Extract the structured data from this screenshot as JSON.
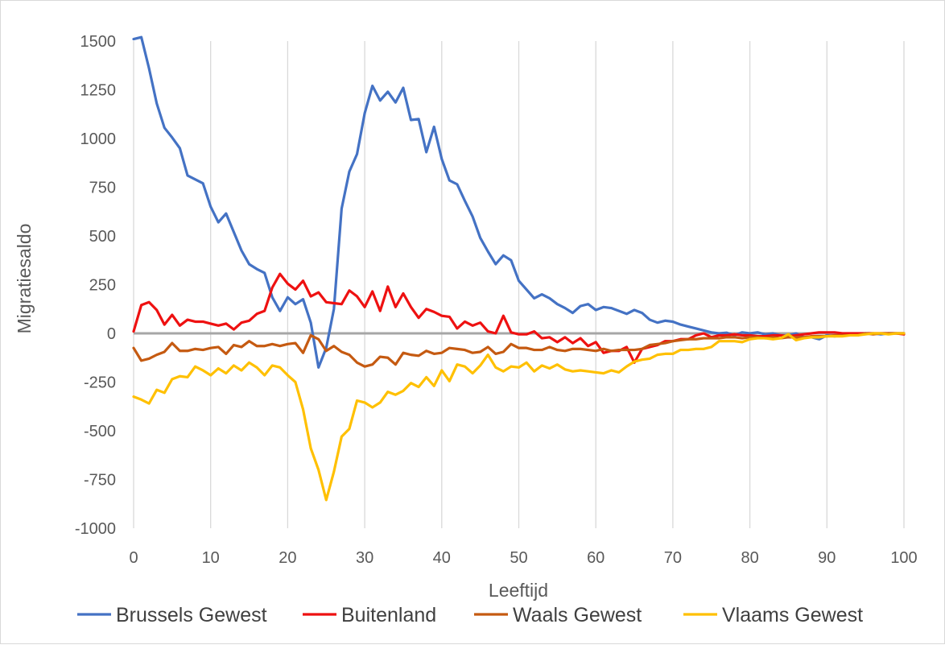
{
  "chart_data": {
    "type": "line",
    "title": "",
    "xlabel": "Leeftijd",
    "ylabel": "Migratiesaldo",
    "xlim": [
      0,
      100
    ],
    "ylim": [
      -1000,
      1500
    ],
    "xticks": [
      0,
      10,
      20,
      30,
      40,
      50,
      60,
      70,
      80,
      90,
      100
    ],
    "yticks": [
      -1000,
      -750,
      -500,
      -250,
      0,
      250,
      500,
      750,
      1000,
      1250,
      1500
    ],
    "grid": "vertical",
    "legend_position": "bottom",
    "zero_line_color": "#a6a6a6",
    "x": [
      0,
      1,
      2,
      3,
      4,
      5,
      6,
      7,
      8,
      9,
      10,
      11,
      12,
      13,
      14,
      15,
      16,
      17,
      18,
      19,
      20,
      21,
      22,
      23,
      24,
      25,
      26,
      27,
      28,
      29,
      30,
      31,
      32,
      33,
      34,
      35,
      36,
      37,
      38,
      39,
      40,
      41,
      42,
      43,
      44,
      45,
      46,
      47,
      48,
      49,
      50,
      51,
      52,
      53,
      54,
      55,
      56,
      57,
      58,
      59,
      60,
      61,
      62,
      63,
      64,
      65,
      66,
      67,
      68,
      69,
      70,
      71,
      72,
      73,
      74,
      75,
      76,
      77,
      78,
      79,
      80,
      81,
      82,
      83,
      84,
      85,
      86,
      87,
      88,
      89,
      90,
      91,
      92,
      93,
      94,
      95,
      96,
      97,
      98,
      99,
      100
    ],
    "series": [
      {
        "name": "Brussels Gewest",
        "color": "#4472c4",
        "values": [
          1510,
          1520,
          1360,
          1180,
          1055,
          1005,
          950,
          810,
          790,
          770,
          650,
          570,
          615,
          520,
          425,
          355,
          330,
          310,
          185,
          115,
          185,
          150,
          175,
          55,
          -175,
          -75,
          125,
          640,
          830,
          920,
          1130,
          1270,
          1195,
          1240,
          1185,
          1260,
          1095,
          1100,
          930,
          1060,
          895,
          785,
          765,
          680,
          600,
          490,
          420,
          355,
          400,
          375,
          270,
          225,
          180,
          200,
          180,
          150,
          130,
          105,
          140,
          150,
          120,
          135,
          130,
          115,
          100,
          120,
          105,
          70,
          55,
          65,
          60,
          45,
          35,
          25,
          15,
          5,
          0,
          3,
          -10,
          5,
          0,
          5,
          -5,
          0,
          -10,
          -10,
          0,
          -20,
          -20,
          -30,
          -10,
          -15,
          -10,
          -5,
          -5,
          0,
          0,
          -5,
          0,
          0,
          0
        ]
      },
      {
        "name": "Buitenland",
        "color": "#ee1111",
        "values": [
          10,
          145,
          160,
          120,
          45,
          95,
          40,
          70,
          60,
          60,
          50,
          40,
          50,
          20,
          55,
          65,
          100,
          115,
          235,
          305,
          255,
          225,
          270,
          190,
          210,
          160,
          155,
          150,
          220,
          190,
          135,
          215,
          115,
          240,
          135,
          205,
          135,
          80,
          125,
          110,
          90,
          85,
          25,
          60,
          40,
          55,
          10,
          0,
          90,
          5,
          -5,
          -5,
          10,
          -25,
          -20,
          -45,
          -20,
          -50,
          -25,
          -65,
          -45,
          -100,
          -90,
          -90,
          -70,
          -150,
          -80,
          -70,
          -60,
          -40,
          -40,
          -30,
          -30,
          -10,
          0,
          -20,
          -10,
          -10,
          -5,
          -10,
          -10,
          -15,
          -15,
          -10,
          -10,
          -15,
          -10,
          -5,
          0,
          5,
          5,
          5,
          0,
          0,
          0,
          0,
          0,
          0,
          0,
          0,
          -5
        ]
      },
      {
        "name": "Waals Gewest",
        "color": "#c55a11",
        "values": [
          -75,
          -140,
          -130,
          -110,
          -95,
          -50,
          -90,
          -90,
          -80,
          -85,
          -75,
          -70,
          -105,
          -60,
          -70,
          -40,
          -65,
          -65,
          -55,
          -65,
          -55,
          -50,
          -100,
          -10,
          -30,
          -90,
          -65,
          -95,
          -110,
          -150,
          -170,
          -160,
          -120,
          -125,
          -160,
          -100,
          -110,
          -115,
          -90,
          -105,
          -100,
          -75,
          -80,
          -85,
          -100,
          -95,
          -70,
          -105,
          -95,
          -55,
          -75,
          -75,
          -85,
          -85,
          -70,
          -85,
          -90,
          -80,
          -80,
          -85,
          -90,
          -80,
          -90,
          -85,
          -85,
          -85,
          -80,
          -60,
          -55,
          -50,
          -40,
          -35,
          -30,
          -30,
          -25,
          -25,
          -25,
          -20,
          -20,
          -25,
          -20,
          -20,
          -25,
          -20,
          -25,
          -20,
          -20,
          -20,
          -15,
          -15,
          -15,
          -10,
          -10,
          -10,
          -10,
          0,
          -5,
          0,
          0,
          0,
          0
        ]
      },
      {
        "name": "Vlaams Gewest",
        "color": "#ffc000",
        "values": [
          -325,
          -340,
          -360,
          -290,
          -305,
          -235,
          -220,
          -225,
          -170,
          -190,
          -215,
          -180,
          -205,
          -165,
          -190,
          -150,
          -175,
          -215,
          -165,
          -175,
          -215,
          -250,
          -390,
          -590,
          -700,
          -855,
          -710,
          -530,
          -490,
          -345,
          -355,
          -380,
          -355,
          -300,
          -315,
          -295,
          -255,
          -275,
          -225,
          -270,
          -190,
          -245,
          -160,
          -170,
          -205,
          -165,
          -110,
          -175,
          -195,
          -170,
          -175,
          -150,
          -195,
          -165,
          -180,
          -160,
          -185,
          -195,
          -190,
          -195,
          -200,
          -205,
          -190,
          -200,
          -170,
          -145,
          -135,
          -130,
          -110,
          -105,
          -105,
          -85,
          -85,
          -80,
          -80,
          -70,
          -40,
          -40,
          -40,
          -45,
          -30,
          -25,
          -25,
          -30,
          -25,
          -5,
          -35,
          -25,
          -20,
          -20,
          -15,
          -15,
          -15,
          -10,
          -10,
          -5,
          0,
          0,
          -5,
          0,
          0
        ]
      }
    ]
  }
}
